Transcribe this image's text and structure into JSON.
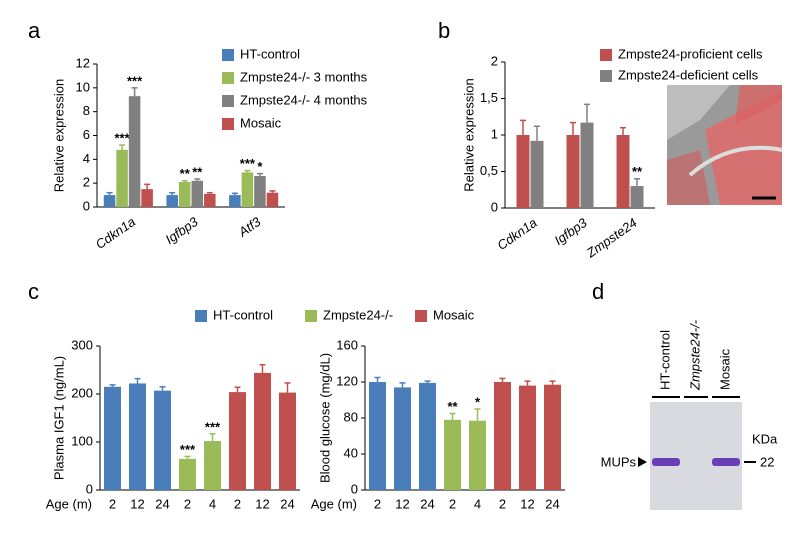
{
  "chart_data": [
    {
      "type": "bar",
      "panel": "a",
      "ylabel": "Relative expression",
      "categories": [
        "Cdkn1a",
        "Igfbp3",
        "Atf3"
      ],
      "ylim": [
        0,
        12
      ],
      "yticks": [
        0,
        2,
        4,
        6,
        8,
        10,
        12
      ],
      "series": [
        {
          "name": "HT-control",
          "color": "#4a7ebb",
          "values": [
            1,
            1,
            1
          ],
          "errors": [
            0.2,
            0.2,
            0.15
          ]
        },
        {
          "name": "Zmpste24-/- 3 months",
          "color": "#9bbb59",
          "values": [
            4.8,
            2.1,
            2.9
          ],
          "errors": [
            0.4,
            0.1,
            0.15
          ],
          "significance": [
            "***",
            "**",
            "***"
          ]
        },
        {
          "name": "Zmpste24-/- 4 months",
          "color": "#808080",
          "values": [
            9.3,
            2.2,
            2.6
          ],
          "errors": [
            0.7,
            0.15,
            0.2
          ],
          "significance": [
            "***",
            "**",
            "*"
          ]
        },
        {
          "name": "Mosaic",
          "color": "#c0504d",
          "values": [
            1.5,
            1.1,
            1.2
          ],
          "errors": [
            0.4,
            0.1,
            0.15
          ]
        }
      ]
    },
    {
      "type": "bar",
      "panel": "b",
      "ylabel": "Relative expression",
      "categories": [
        "Cdkn1a",
        "Igfbp3",
        "Zmpste24"
      ],
      "ylim": [
        0,
        2
      ],
      "yticks": [
        0,
        {
          "value": 0.5,
          "label": "0,5"
        },
        1,
        {
          "value": 1.5,
          "label": "1,5"
        },
        2
      ],
      "series": [
        {
          "name": "Zmpste24-proficient cells",
          "color": "#c0504d",
          "values": [
            1,
            1,
            1
          ],
          "errors": [
            0.2,
            0.17,
            0.1
          ]
        },
        {
          "name": "Zmpste24-deficient cells",
          "color": "#808080",
          "values": [
            0.92,
            1.17,
            0.3
          ],
          "errors": [
            0.2,
            0.25,
            0.1
          ],
          "significance": [
            null,
            null,
            "**"
          ]
        }
      ]
    },
    {
      "type": "bar",
      "panel": "c",
      "ylabel": "Plasma IGF1 (ng/mL)",
      "xlabel": "Age (m)",
      "categories": [
        "2",
        "12",
        "24",
        "2",
        "4",
        "2",
        "12",
        "24"
      ],
      "ylim": [
        0,
        300
      ],
      "yticks": [
        0,
        100,
        200,
        300
      ],
      "series": [
        {
          "name": "HT-control",
          "color": "#4a7ebb",
          "values": [
            215,
            222,
            207,
            null,
            null,
            null,
            null,
            null
          ],
          "errors": [
            4,
            10,
            8,
            null,
            null,
            null,
            null,
            null
          ]
        },
        {
          "name": "Zmpste24-/-",
          "color": "#9bbb59",
          "values": [
            null,
            null,
            null,
            65,
            102,
            null,
            null,
            null
          ],
          "errors": [
            null,
            null,
            null,
            5,
            15,
            null,
            null,
            null
          ],
          "significance": [
            null,
            null,
            null,
            "***",
            "***",
            null,
            null,
            null
          ]
        },
        {
          "name": "Mosaic",
          "color": "#c0504d",
          "values": [
            null,
            null,
            null,
            null,
            null,
            204,
            244,
            203
          ],
          "errors": [
            null,
            null,
            null,
            null,
            null,
            10,
            17,
            20
          ]
        }
      ]
    },
    {
      "type": "bar",
      "ylabel": "Blood glucose (mg/dL)",
      "xlabel": "Age (m)",
      "categories": [
        "2",
        "12",
        "24",
        "2",
        "4",
        "2",
        "12",
        "24"
      ],
      "ylim": [
        0,
        160
      ],
      "yticks": [
        0,
        40,
        80,
        120,
        160
      ],
      "series": [
        {
          "color": "#4a7ebb",
          "values": [
            120,
            114,
            119,
            null,
            null,
            null,
            null,
            null
          ],
          "errors": [
            5,
            5,
            2,
            null,
            null,
            null,
            null,
            null
          ]
        },
        {
          "color": "#9bbb59",
          "values": [
            null,
            null,
            null,
            78,
            77,
            null,
            null,
            null
          ],
          "errors": [
            null,
            null,
            null,
            7,
            13,
            null,
            null,
            null
          ],
          "significance": [
            null,
            null,
            null,
            "**",
            "*",
            null,
            null,
            null
          ]
        },
        {
          "color": "#c0504d",
          "values": [
            null,
            null,
            null,
            null,
            null,
            120,
            116,
            117
          ],
          "errors": [
            null,
            null,
            null,
            null,
            null,
            4,
            5,
            4
          ]
        }
      ]
    },
    {
      "type": "gel",
      "panel": "d",
      "lanes": [
        "HT-control",
        "Zmpste24-/-",
        "Mosaic"
      ],
      "unit": "KDa",
      "marker": "22",
      "band_label": "MUPs"
    }
  ]
}
